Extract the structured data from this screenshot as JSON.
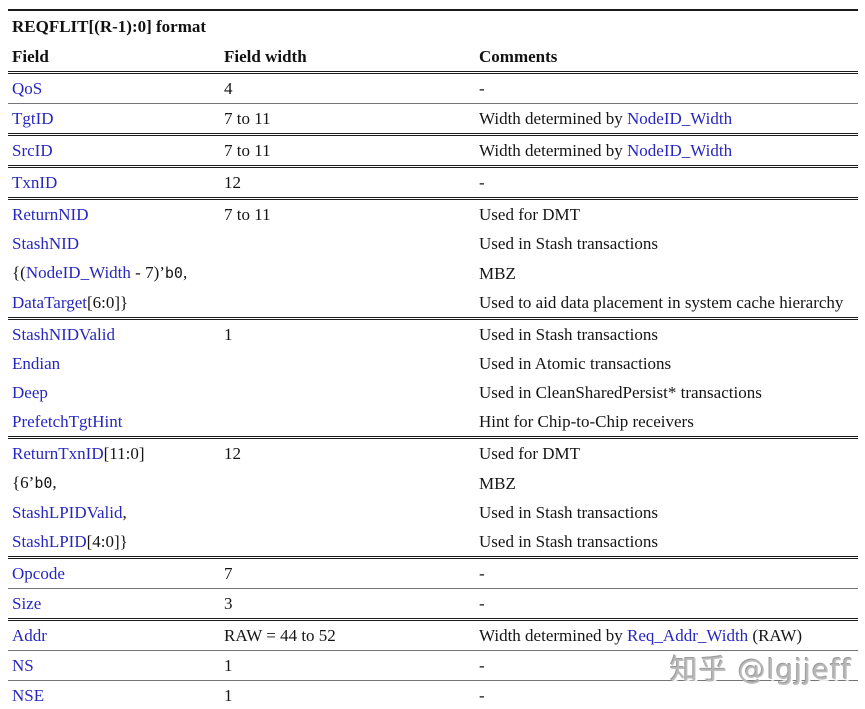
{
  "title": "REQFLIT[(R-1):0] format",
  "columns": [
    "Field",
    "Field width",
    "Comments"
  ],
  "colors": {
    "link_blue": "#2727bd",
    "text_black": "#151515",
    "rule_dark": "#1b1b1b",
    "rule_thin": "#757575",
    "watermark_gray": "#bababa"
  },
  "watermark": "知乎 @lgjjeff",
  "rows": [
    {
      "field": [
        {
          "t": "QoS",
          "s": "link"
        }
      ],
      "width": "4",
      "comments": [
        {
          "t": "-",
          "s": "plain"
        }
      ]
    },
    {
      "field": [
        {
          "t": "TgtID",
          "s": "link"
        }
      ],
      "width": "7 to 11",
      "comments": [
        {
          "t": "Width determined by ",
          "s": "plain"
        },
        {
          "t": "NodeID_Width",
          "s": "link"
        }
      ]
    },
    {
      "field": [
        {
          "t": "SrcID",
          "s": "link"
        }
      ],
      "width": "7 to 11",
      "comments": [
        {
          "t": "Width determined by ",
          "s": "plain"
        },
        {
          "t": "NodeID_Width",
          "s": "link"
        }
      ]
    },
    {
      "field": [
        {
          "t": "TxnID",
          "s": "link"
        }
      ],
      "width": "12",
      "comments": [
        {
          "t": "-",
          "s": "plain"
        }
      ]
    },
    {
      "field": [
        {
          "t": "ReturnNID",
          "s": "link"
        }
      ],
      "width": "7 to 11",
      "comments": [
        {
          "t": "Used for DMT",
          "s": "plain"
        }
      ]
    },
    {
      "field": [
        {
          "t": "StashNID",
          "s": "link"
        }
      ],
      "width": "",
      "comments": [
        {
          "t": "Used in Stash transactions",
          "s": "plain"
        }
      ]
    },
    {
      "field": [
        {
          "t": "{(",
          "s": "plain"
        },
        {
          "t": "NodeID_Width",
          "s": "link"
        },
        {
          "t": " - 7)’",
          "s": "plain"
        },
        {
          "t": "b0",
          "s": "mono"
        },
        {
          "t": ",",
          "s": "plain"
        }
      ],
      "width": "",
      "comments": [
        {
          "t": "MBZ",
          "s": "plain"
        }
      ]
    },
    {
      "field": [
        {
          "t": "DataTarget",
          "s": "link"
        },
        {
          "t": "[6:0]}",
          "s": "plain"
        }
      ],
      "width": "",
      "comments": [
        {
          "t": "Used to aid data placement in system cache hierarchy",
          "s": "plain"
        }
      ]
    },
    {
      "field": [
        {
          "t": "StashNIDValid",
          "s": "link"
        }
      ],
      "width": "1",
      "comments": [
        {
          "t": "Used in Stash transactions",
          "s": "plain"
        }
      ]
    },
    {
      "field": [
        {
          "t": "Endian",
          "s": "link"
        }
      ],
      "width": "",
      "comments": [
        {
          "t": "Used in Atomic transactions",
          "s": "plain"
        }
      ]
    },
    {
      "field": [
        {
          "t": "Deep",
          "s": "link"
        }
      ],
      "width": "",
      "comments": [
        {
          "t": "Used in CleanSharedPersist* transactions",
          "s": "plain"
        }
      ]
    },
    {
      "field": [
        {
          "t": "PrefetchTgtHint",
          "s": "link"
        }
      ],
      "width": "",
      "comments": [
        {
          "t": "Hint for Chip-to-Chip receivers",
          "s": "plain"
        }
      ]
    },
    {
      "field": [
        {
          "t": "ReturnTxnID",
          "s": "link"
        },
        {
          "t": "[11:0]",
          "s": "plain"
        }
      ],
      "width": "12",
      "comments": [
        {
          "t": "Used for DMT",
          "s": "plain"
        }
      ]
    },
    {
      "field": [
        {
          "t": "{6’",
          "s": "plain"
        },
        {
          "t": "b0",
          "s": "mono"
        },
        {
          "t": ",",
          "s": "plain"
        }
      ],
      "width": "",
      "comments": [
        {
          "t": "MBZ",
          "s": "plain"
        }
      ]
    },
    {
      "field": [
        {
          "t": "StashLPIDValid",
          "s": "link"
        },
        {
          "t": ",",
          "s": "plain"
        }
      ],
      "width": "",
      "comments": [
        {
          "t": "Used in Stash transactions",
          "s": "plain"
        }
      ]
    },
    {
      "field": [
        {
          "t": "StashLPID",
          "s": "link"
        },
        {
          "t": "[4:0]}",
          "s": "plain"
        }
      ],
      "width": "",
      "comments": [
        {
          "t": "Used in Stash transactions",
          "s": "plain"
        }
      ]
    },
    {
      "field": [
        {
          "t": "Opcode",
          "s": "link"
        }
      ],
      "width": "7",
      "comments": [
        {
          "t": "-",
          "s": "plain"
        }
      ]
    },
    {
      "field": [
        {
          "t": "Size",
          "s": "link"
        }
      ],
      "width": "3",
      "comments": [
        {
          "t": "-",
          "s": "plain"
        }
      ]
    },
    {
      "field": [
        {
          "t": "Addr",
          "s": "link"
        }
      ],
      "width": "RAW = 44 to 52",
      "comments": [
        {
          "t": "Width determined by ",
          "s": "plain"
        },
        {
          "t": "Req_Addr_Width",
          "s": "link"
        },
        {
          "t": " (RAW)",
          "s": "plain"
        }
      ]
    },
    {
      "field": [
        {
          "t": "NS",
          "s": "link"
        }
      ],
      "width": "1",
      "comments": [
        {
          "t": "-",
          "s": "plain"
        }
      ]
    },
    {
      "field": [
        {
          "t": "NSE",
          "s": "link"
        }
      ],
      "width": "1",
      "comments": [
        {
          "t": "-",
          "s": "plain"
        }
      ]
    }
  ]
}
